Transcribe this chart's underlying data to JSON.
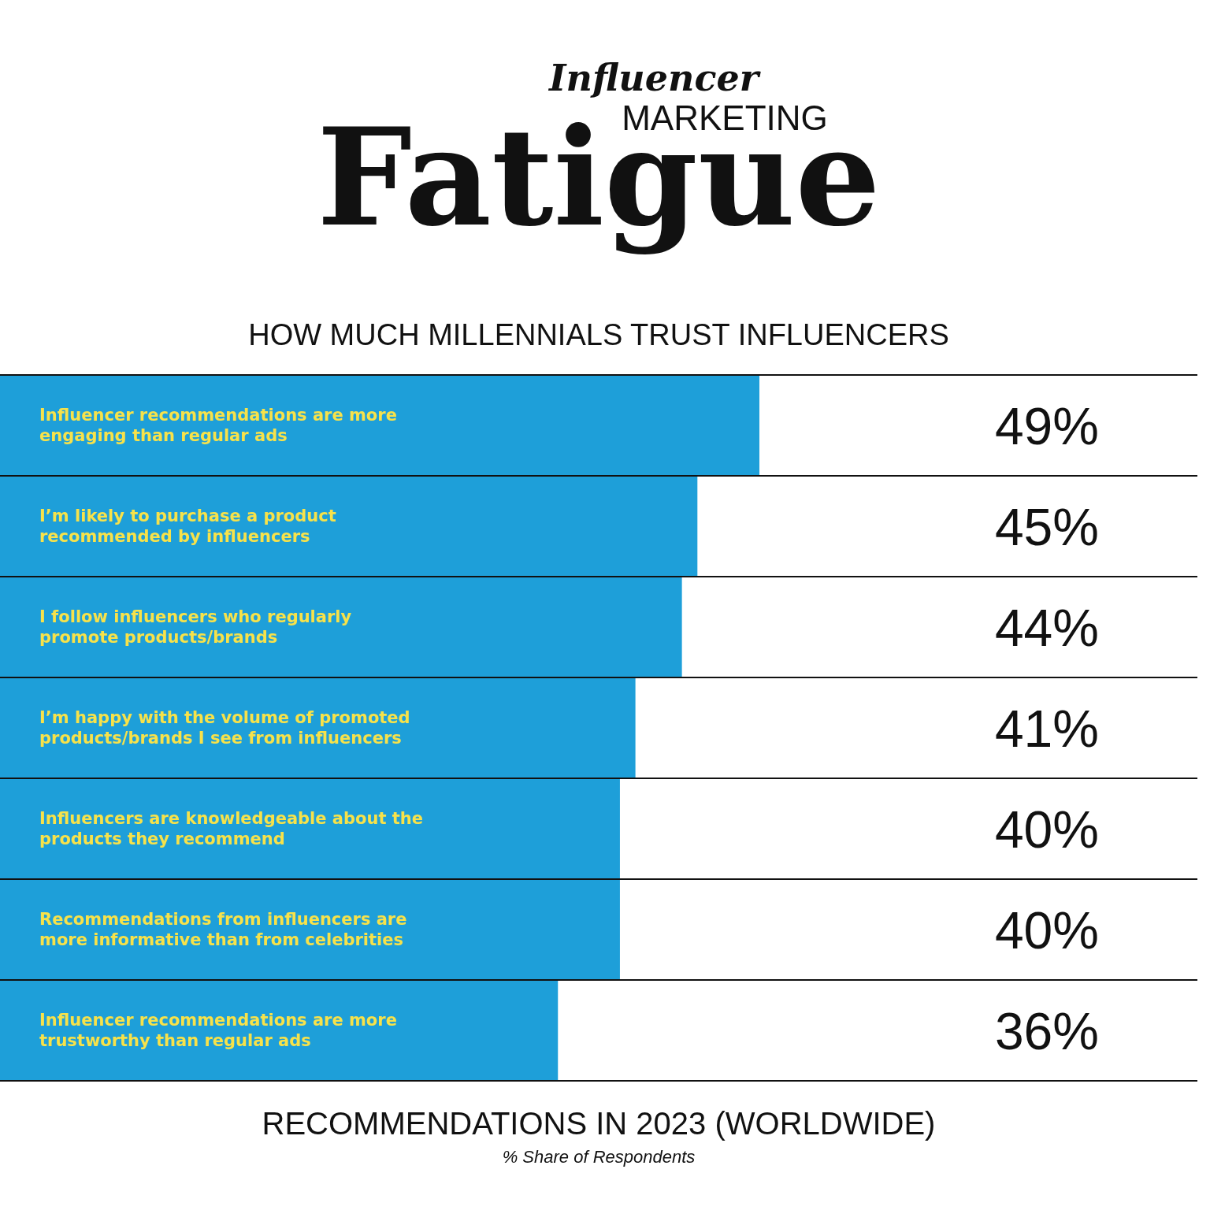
{
  "chart_data": {
    "type": "bar",
    "orientation": "horizontal",
    "title": "Influencer MARKETING Fatigue",
    "subtitle": "HOW MUCH MILLENNIALS TRUST INFLUENCERS",
    "categories": [
      "Influencer recommendations are more engaging than regular ads",
      "I’m likely to purchase a product recommended by influencers",
      "I follow influencers who regularly promote products/brands",
      "I’m happy with the volume of promoted products/brands I see from influencers",
      "Influencers are knowledgeable about the products they recommend",
      "Recommendations from influencers are more informative than from celebrities",
      "Influencer recommendations are more trustworthy than regular ads"
    ],
    "values": [
      49,
      45,
      44,
      41,
      40,
      40,
      36
    ],
    "color": "#1e9fd9",
    "value_labels": [
      "49%",
      "45%",
      "44%",
      "41%",
      "40%",
      "40%",
      "36%"
    ],
    "annotations": [
      "RECOMMENDATIONS IN 2023 (WORLDWIDE)",
      "% Share of Respondents"
    ]
  }
}
